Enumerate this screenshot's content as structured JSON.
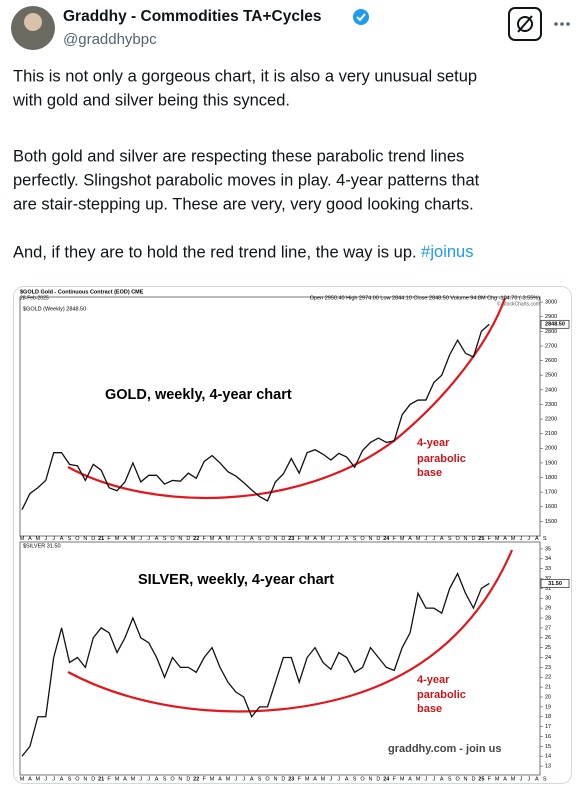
{
  "header": {
    "name": "Graddhy - Commodities TA+Cycles",
    "handle": "@graddhybpc"
  },
  "body": {
    "paragraphs": [
      [
        "This is not only a gorgeous chart, it is also a very unusual setup",
        "with gold and silver being this synced."
      ],
      [
        "Both gold and silver are respecting these parabolic trend lines",
        "perfectly. Slingshot parabolic moves in play. 4-year patterns that",
        "are stair-stepping up. These are very, very good looking charts."
      ],
      [
        "And, if they are to hold the red trend line, the way is up. "
      ]
    ],
    "hashtag": "#joinus"
  },
  "image": {
    "date": "28-Feb-2025",
    "contract": "$GOLD Gold - Continuous Contract (EOD) CME",
    "stats": "Open 2950.40  High 2974.00  Low 2844.10  Close 2848.50  Volume 94.8M  Chg -104.70 (-3.55%)",
    "source": "© StockCharts.com",
    "months": [
      "M",
      "A",
      "M",
      "J",
      "J",
      "A",
      "S",
      "O",
      "N",
      "D",
      "21",
      "F",
      "M",
      "A",
      "M",
      "J",
      "J",
      "A",
      "S",
      "O",
      "N",
      "D",
      "22",
      "F",
      "M",
      "A",
      "M",
      "J",
      "J",
      "A",
      "S",
      "O",
      "N",
      "D",
      "23",
      "F",
      "M",
      "A",
      "M",
      "J",
      "J",
      "A",
      "S",
      "O",
      "N",
      "D",
      "24",
      "F",
      "M",
      "A",
      "M",
      "J",
      "J",
      "A",
      "S",
      "O",
      "N",
      "D",
      "25",
      "F",
      "M",
      "A",
      "M",
      "J",
      "J",
      "A",
      "S"
    ],
    "footer": "graddhy.com - join us",
    "panels": [
      {
        "legend": "$GOLD (Weekly) 2848.50",
        "title": "GOLD, weekly, 4-year chart",
        "last": "2848.50",
        "annotation": [
          "4-year",
          "parabolic",
          "base"
        ],
        "ylim": [
          1400,
          3035
        ],
        "yticks": [
          1500,
          1600,
          1700,
          1800,
          1900,
          2000,
          2100,
          2200,
          2300,
          2400,
          2500,
          2600,
          2700,
          2800,
          2900,
          3000
        ],
        "values": [
          1580,
          1690,
          1730,
          1780,
          1970,
          1970,
          1890,
          1880,
          1780,
          1890,
          1850,
          1730,
          1710,
          1770,
          1900,
          1770,
          1815,
          1815,
          1755,
          1780,
          1775,
          1830,
          1795,
          1910,
          1950,
          1900,
          1840,
          1810,
          1765,
          1715,
          1670,
          1640,
          1770,
          1825,
          1930,
          1830,
          1970,
          1990,
          1960,
          1920,
          1965,
          1940,
          1870,
          1985,
          2040,
          2070,
          2040,
          2050,
          2230,
          2300,
          2330,
          2330,
          2450,
          2500,
          2640,
          2740,
          2650,
          2625,
          2800,
          2848.5
        ]
      },
      {
        "legend": "$SILVER 31.50",
        "title": "SILVER, weekly, 4-year chart",
        "last": "31.50",
        "annotation": [
          "4-year",
          "parabolic",
          "base"
        ],
        "ylim": [
          12.1,
          35.7
        ],
        "yticks": [
          13,
          14,
          15,
          16,
          17,
          18,
          19,
          20,
          21,
          22,
          23,
          24,
          25,
          26,
          27,
          28,
          29,
          30,
          31,
          32,
          33,
          34,
          35
        ],
        "values": [
          14,
          15,
          18,
          18,
          24,
          27,
          23.5,
          24,
          23,
          26,
          27,
          26.5,
          24.5,
          26,
          28,
          26,
          25.5,
          24,
          22,
          24,
          23,
          23,
          22.5,
          24,
          25,
          23,
          21.5,
          20.5,
          20,
          18,
          19,
          19,
          21.5,
          24,
          24,
          21.5,
          24,
          25,
          23.5,
          22.8,
          24.5,
          24,
          22.5,
          23,
          25,
          24,
          23,
          22.7,
          25,
          26.5,
          30.5,
          29,
          29,
          28.5,
          31,
          32.5,
          30.5,
          29,
          31,
          31.5
        ]
      }
    ]
  }
}
